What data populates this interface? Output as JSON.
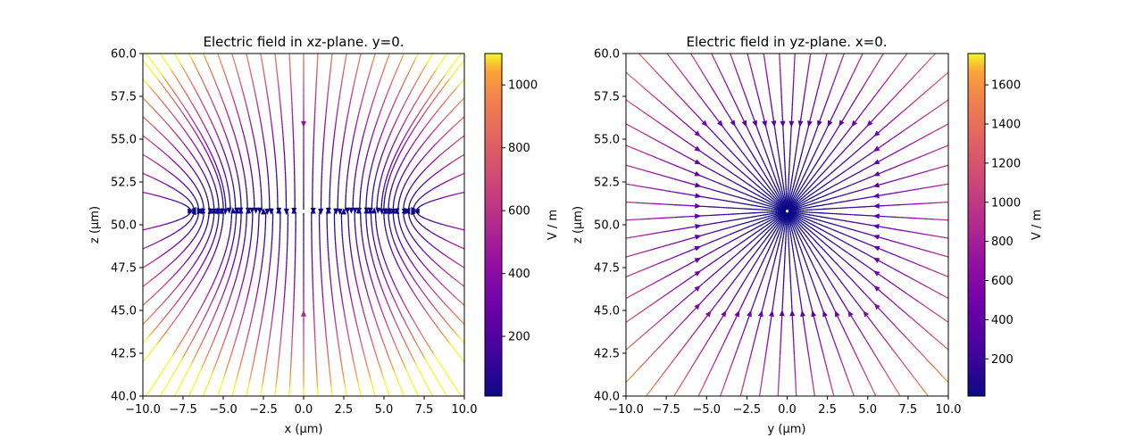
{
  "chart_data": [
    {
      "type": "streamplot",
      "title": "Electric field in xz-plane. y=0.",
      "xlabel": "x (μm)",
      "ylabel": "z (μm)",
      "xlim": [
        -10,
        10
      ],
      "ylim": [
        40,
        60
      ],
      "xticks": [
        "−10.0",
        "−7.5",
        "−5.0",
        "−2.5",
        "0.0",
        "2.5",
        "5.0",
        "7.5",
        "10.0"
      ],
      "yticks": [
        "40.0",
        "42.5",
        "45.0",
        "47.5",
        "50.0",
        "52.5",
        "55.0",
        "57.5",
        "60.0"
      ],
      "convergence_point": [
        0,
        50.8
      ],
      "field_shape": "dipole-line",
      "colormap": "plasma",
      "colorbar": {
        "label": "V / m",
        "range": [
          10,
          1100
        ],
        "ticks": [
          200,
          400,
          600,
          800,
          1000
        ]
      }
    },
    {
      "type": "streamplot",
      "title": "Electric field in yz-plane. x=0.",
      "xlabel": "y (μm)",
      "ylabel": "z (μm)",
      "xlim": [
        -10,
        10
      ],
      "ylim": [
        40,
        60
      ],
      "xticks": [
        "−10.0",
        "−7.5",
        "−5.0",
        "−2.5",
        "0.0",
        "2.5",
        "5.0",
        "7.5",
        "10.0"
      ],
      "yticks": [
        "40.0",
        "42.5",
        "45.0",
        "47.5",
        "50.0",
        "52.5",
        "55.0",
        "57.5",
        "60.0"
      ],
      "convergence_point": [
        0,
        50.8
      ],
      "field_shape": "point-charge",
      "colormap": "plasma",
      "colorbar": {
        "label": "V / m",
        "range": [
          10,
          1760
        ],
        "ticks": [
          200,
          400,
          600,
          800,
          1000,
          1200,
          1400,
          1600
        ]
      }
    }
  ]
}
